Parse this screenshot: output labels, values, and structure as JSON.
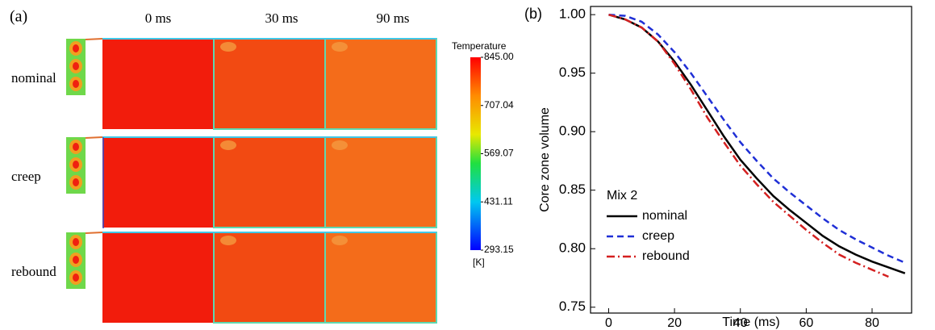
{
  "chart_data": [
    {
      "type": "contour",
      "label": "(a)",
      "columns": [
        "0 ms",
        "30 ms",
        "90 ms"
      ],
      "rows": [
        "nominal",
        "creep",
        "rebound"
      ],
      "colorbar_title": "Temperature",
      "colorbar_unit": "[K]",
      "clim": [
        293.15,
        845
      ],
      "cticks": [
        {
          "value": 845,
          "label": "845.00"
        },
        707.04,
        569.07,
        431.11,
        293.15
      ]
    },
    {
      "type": "line",
      "label": "(b)",
      "xlabel": "Time (ms)",
      "ylabel": "Core zone volume",
      "x": [
        0,
        5,
        10,
        15,
        20,
        25,
        30,
        35,
        40,
        45,
        50,
        55,
        60,
        65,
        70,
        75,
        80,
        85,
        90
      ],
      "series": [
        {
          "name": "nominal",
          "color": "#000000",
          "dash": "solid",
          "values": [
            1.0,
            0.996,
            0.989,
            0.977,
            0.96,
            0.94,
            0.918,
            0.896,
            0.876,
            0.86,
            0.845,
            0.833,
            0.822,
            0.811,
            0.802,
            0.795,
            0.789,
            0.784,
            0.779
          ]
        },
        {
          "name": "creep",
          "color": "#1f2fd6",
          "dash": "dash",
          "values": [
            1.0,
            0.999,
            0.994,
            0.983,
            0.968,
            0.95,
            0.93,
            0.91,
            0.891,
            0.875,
            0.86,
            0.848,
            0.837,
            0.826,
            0.816,
            0.808,
            0.801,
            0.794,
            0.788
          ]
        },
        {
          "name": "rebound",
          "color": "#d42020",
          "dash": "dashdot",
          "values": [
            1.0,
            0.996,
            0.989,
            0.977,
            0.958,
            0.936,
            0.912,
            0.891,
            0.871,
            0.855,
            0.84,
            0.828,
            0.816,
            0.805,
            0.795,
            0.788,
            0.782,
            0.776,
            null
          ]
        }
      ],
      "legend_title": "Mix 2",
      "legend": "lower left",
      "xlim": [
        -5.5,
        92
      ],
      "ylim": [
        0.745,
        1.007
      ],
      "xticks": [
        0,
        20,
        40,
        60,
        80
      ],
      "yticks": [
        {
          "value": 0.75,
          "label": "0.75"
        },
        {
          "value": 0.8,
          "label": "0.80"
        },
        0.85,
        {
          "value": 0.9,
          "label": "0.90"
        },
        0.95,
        {
          "value": 1.0,
          "label": "1.00"
        }
      ]
    }
  ]
}
